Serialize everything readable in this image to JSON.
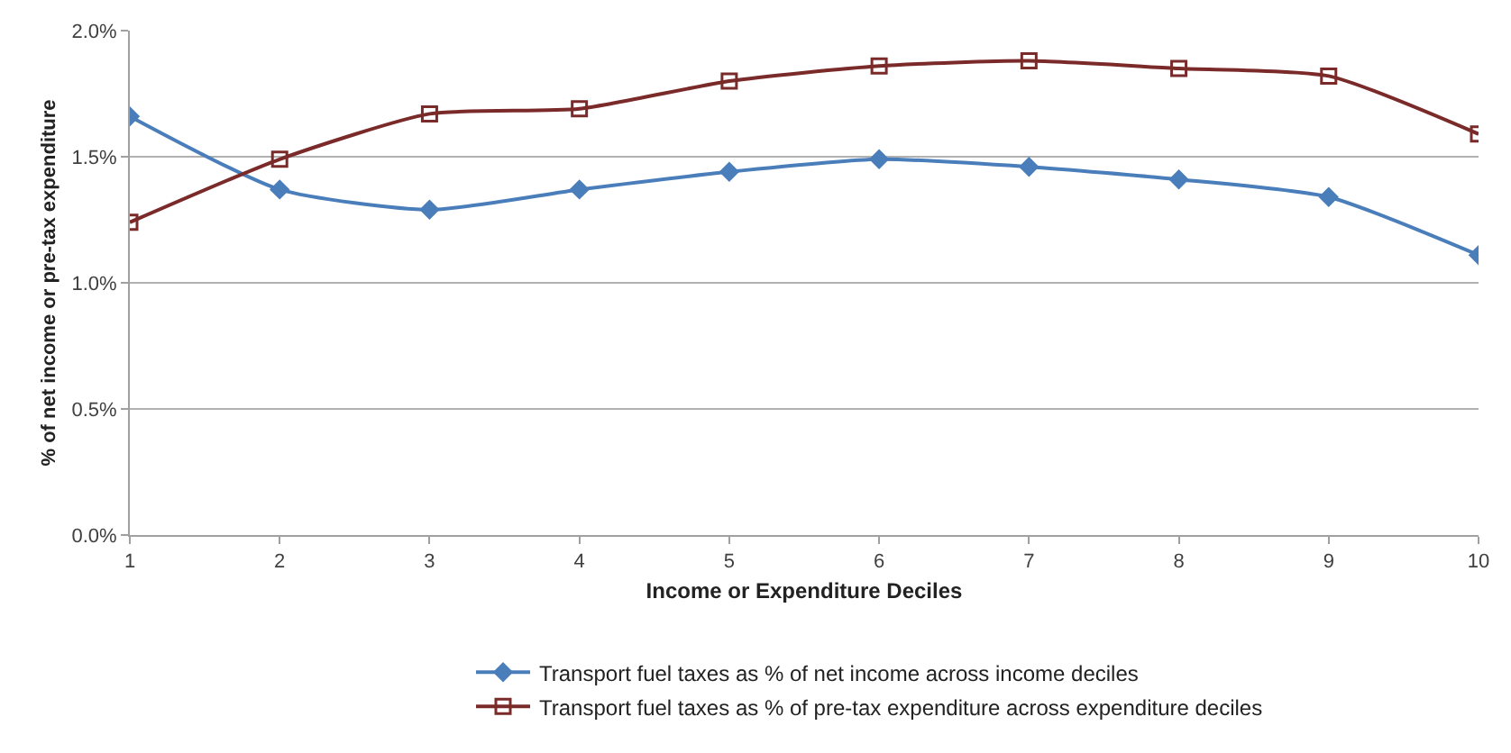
{
  "chart_data": {
    "type": "line",
    "xlabel": "Income or Expenditure Deciles",
    "ylabel": "% of net income or pre-tax expenditure",
    "categories": [
      "1",
      "2",
      "3",
      "4",
      "5",
      "6",
      "7",
      "8",
      "9",
      "10"
    ],
    "series": [
      {
        "name": "Transport fuel taxes as % of net income across income deciles",
        "color": "#4a7ebb",
        "marker": "diamond",
        "values": [
          1.66,
          1.37,
          1.29,
          1.37,
          1.44,
          1.49,
          1.46,
          1.41,
          1.34,
          1.11
        ]
      },
      {
        "name": "Transport fuel taxes as % of pre-tax expenditure across expenditure deciles",
        "color": "#7b2a2a",
        "marker": "square",
        "values": [
          1.24,
          1.49,
          1.67,
          1.69,
          1.8,
          1.86,
          1.88,
          1.85,
          1.82,
          1.59
        ]
      }
    ],
    "ylim": [
      0,
      2.0
    ],
    "yticks": [
      {
        "value": 0,
        "label": "0.0%"
      },
      {
        "value": 0.5,
        "label": "0.5%"
      },
      {
        "value": 1.0,
        "label": "1.0%"
      },
      {
        "value": 1.5,
        "label": "1.5%"
      },
      {
        "value": 2.0,
        "label": "2.0%"
      }
    ],
    "grid": "y",
    "legend": "bottom"
  }
}
